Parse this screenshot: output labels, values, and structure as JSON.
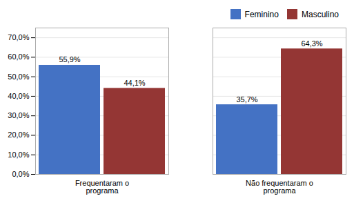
{
  "chart_data": {
    "type": "bar",
    "categories": [
      "Frequentaram o\nprograma",
      "Não frequentaram o\nprograma"
    ],
    "series": [
      {
        "name": "Feminino",
        "color": "#4472C4",
        "values": [
          55.9,
          35.7
        ],
        "value_labels": [
          "55,9%",
          "35,7%"
        ]
      },
      {
        "name": "Masculino",
        "color": "#943634",
        "values": [
          44.1,
          64.3
        ],
        "value_labels": [
          "44,1%",
          "64,3%"
        ]
      }
    ],
    "ylim": [
      0,
      75
    ],
    "yticks": [
      {
        "value": 0,
        "label": "0,0%"
      },
      {
        "value": 10,
        "label": "10,0%"
      },
      {
        "value": 20,
        "label": "20,0%"
      },
      {
        "value": 30,
        "label": "30,0%"
      },
      {
        "value": 40,
        "label": "40,0%"
      },
      {
        "value": 50,
        "label": "50,0%"
      },
      {
        "value": 60,
        "label": "60,0%"
      },
      {
        "value": 70,
        "label": "70,0%"
      }
    ],
    "grid": true,
    "legend": "upper right",
    "data_labels": true
  }
}
